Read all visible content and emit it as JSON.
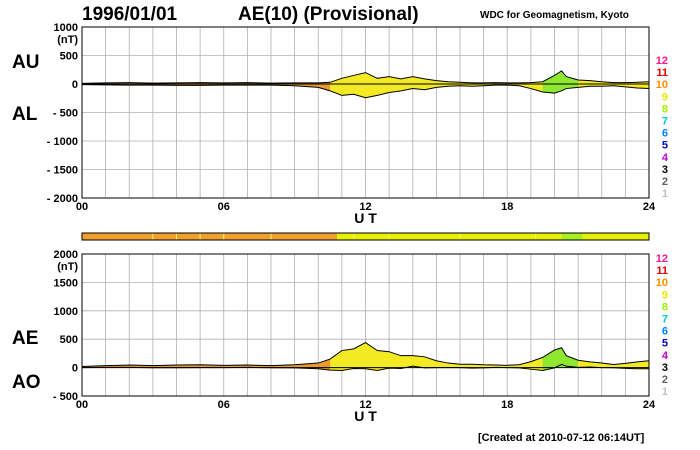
{
  "header": {
    "date": "1996/01/01",
    "title": "AE(10) (Provisional)",
    "organization": "WDC for Geomagnetism, Kyoto"
  },
  "footer": {
    "created": "[Created at 2010-07-12 06:14UT]"
  },
  "panel_labels": {
    "au": "AU",
    "al": "AL",
    "ae": "AE",
    "ao": "AO"
  },
  "legend": {
    "levels": [
      "12",
      "11",
      "10",
      "9",
      "8",
      "7",
      "6",
      "5",
      "4",
      "3",
      "2",
      "1"
    ],
    "colors": [
      "#ff1493",
      "#e00000",
      "#ff8c00",
      "#e8e800",
      "#a0f000",
      "#00c8c8",
      "#0080ff",
      "#0000c8",
      "#c000c8",
      "#000000",
      "#606060",
      "#c0c0c0"
    ]
  },
  "activity_bar": {
    "segments": [
      {
        "from": 0,
        "to": 10.8,
        "level": 10,
        "color": "#f0a030"
      },
      {
        "from": 10.8,
        "to": 20.3,
        "level": 9,
        "color": "#e8f000"
      },
      {
        "from": 20.3,
        "to": 21.2,
        "level": 8,
        "color": "#a8f020"
      },
      {
        "from": 21.2,
        "to": 24,
        "level": 9,
        "color": "#e8f000"
      }
    ]
  },
  "chart_data": [
    {
      "type": "area",
      "panel": "AU/AL",
      "xlabel": "U T",
      "ylabel": "(nT)",
      "xlim": [
        0,
        24
      ],
      "ylim": [
        -2000,
        1000
      ],
      "xticks": [
        "00",
        "06",
        "12",
        "18",
        "24"
      ],
      "xtick_values": [
        0,
        6,
        12,
        18,
        24
      ],
      "yticks": [
        1000,
        500,
        0,
        -500,
        -1000,
        -1500,
        -2000
      ],
      "ytick_labels": [
        "1000",
        "500",
        "0",
        "- 500",
        "- 1000",
        "- 1500",
        "- 2000"
      ],
      "grid": true,
      "x": [
        0,
        1,
        2,
        3,
        4,
        5,
        6,
        7,
        8,
        9,
        10,
        10.5,
        11,
        11.5,
        12,
        12.5,
        13,
        13.5,
        14,
        14.5,
        15,
        15.5,
        16,
        16.5,
        17,
        17.5,
        18,
        18.5,
        19,
        19.5,
        20,
        20.3,
        20.5,
        21,
        21.5,
        22,
        22.5,
        23,
        23.5,
        24
      ],
      "series": [
        {
          "name": "AU",
          "values": [
            10,
            20,
            25,
            15,
            20,
            25,
            20,
            25,
            15,
            20,
            20,
            30,
            100,
            150,
            200,
            100,
            130,
            90,
            130,
            90,
            60,
            40,
            30,
            20,
            20,
            25,
            20,
            20,
            25,
            40,
            150,
            230,
            130,
            70,
            60,
            40,
            25,
            25,
            30,
            40
          ]
        },
        {
          "name": "AL",
          "values": [
            -10,
            -15,
            -20,
            -20,
            -25,
            -25,
            -20,
            -20,
            -20,
            -30,
            -60,
            -120,
            -200,
            -180,
            -240,
            -200,
            -150,
            -120,
            -80,
            -100,
            -60,
            -40,
            -30,
            -40,
            -30,
            -20,
            -20,
            -30,
            -80,
            -140,
            -160,
            -120,
            -80,
            -60,
            -40,
            -40,
            -30,
            -50,
            -70,
            -80
          ]
        }
      ]
    },
    {
      "type": "area",
      "panel": "AE/AO",
      "xlabel": "U T",
      "ylabel": "(nT)",
      "xlim": [
        0,
        24
      ],
      "ylim": [
        -500,
        2000
      ],
      "xticks": [
        "00",
        "06",
        "12",
        "18",
        "24"
      ],
      "xtick_values": [
        0,
        6,
        12,
        18,
        24
      ],
      "yticks": [
        2000,
        1500,
        1000,
        500,
        0,
        -500
      ],
      "ytick_labels": [
        "2000",
        "1500",
        "1000",
        "500",
        "0",
        "- 500"
      ],
      "grid": true,
      "x": [
        0,
        1,
        2,
        3,
        4,
        5,
        6,
        7,
        8,
        9,
        10,
        10.5,
        11,
        11.5,
        12,
        12.5,
        13,
        13.5,
        14,
        14.5,
        15,
        15.5,
        16,
        16.5,
        17,
        17.5,
        18,
        18.5,
        19,
        19.5,
        20,
        20.3,
        20.5,
        21,
        21.5,
        22,
        22.5,
        23,
        23.5,
        24
      ],
      "series": [
        {
          "name": "AE",
          "values": [
            20,
            35,
            45,
            35,
            45,
            50,
            40,
            45,
            35,
            50,
            80,
            150,
            300,
            330,
            440,
            300,
            280,
            210,
            210,
            190,
            120,
            80,
            60,
            60,
            50,
            45,
            40,
            50,
            105,
            180,
            310,
            350,
            210,
            130,
            100,
            80,
            55,
            75,
            100,
            120
          ]
        },
        {
          "name": "AO",
          "values": [
            0,
            3,
            3,
            -3,
            -3,
            0,
            0,
            3,
            -3,
            -5,
            -20,
            -45,
            -50,
            -15,
            -20,
            -50,
            -10,
            -15,
            25,
            -5,
            0,
            0,
            0,
            -10,
            -5,
            3,
            0,
            -5,
            -28,
            -50,
            -5,
            55,
            25,
            5,
            10,
            0,
            -3,
            -13,
            -20,
            -20
          ]
        }
      ]
    }
  ]
}
